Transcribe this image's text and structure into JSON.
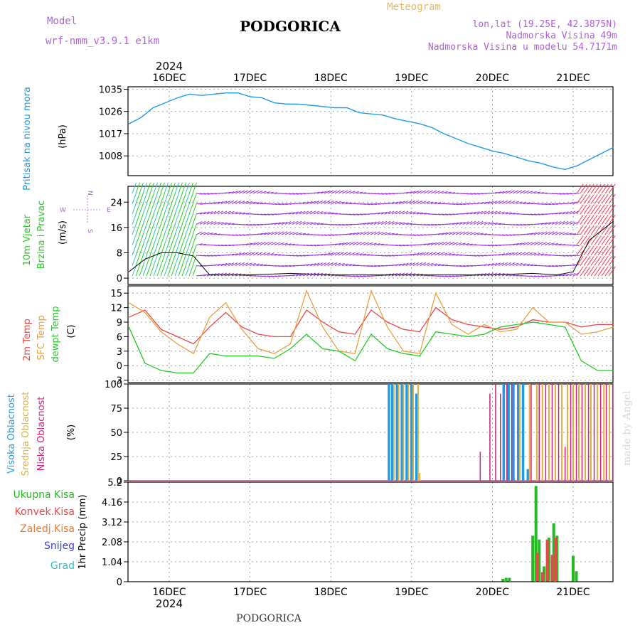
{
  "header": {
    "model_label": "Model",
    "model_name": "wrf-nmm_v3.9.1 e1km",
    "city": "PODGORICA",
    "product": "Meteogram",
    "lonlat": "lon,lat (19.25E, 42.3875N)",
    "elevation": "Nadmorska Visina 49m",
    "model_elevation": "Nadmorska Visina u modelu 54.7171m",
    "footer_city": "PODGORICA",
    "credit": "made by Angel"
  },
  "colors": {
    "pressure": "#1e9be6",
    "wind_green": "#22cc22",
    "wind_purple": "#9a2ee0",
    "wind_red": "#ff3050",
    "temp2m": "#e84848",
    "sfc_temp": "#e8a040",
    "dewpt": "#22cc22",
    "cloud_high": "#1e9be6",
    "cloud_mid": "#e0b040",
    "cloud_low": "#d0207a",
    "precip_total": "#22bb22",
    "precip_conv": "#e84848",
    "precip_frz": "#f07a30",
    "snow": "#3c3ce0",
    "hail": "#30c0c0"
  },
  "time_axis": {
    "year": "2024",
    "days": [
      "16DEC",
      "17DEC",
      "18DEC",
      "19DEC",
      "20DEC",
      "21DEC"
    ]
  },
  "chart_data": [
    {
      "type": "line",
      "panel": "pressure",
      "ylabel": "Pritisak na nivou mora",
      "unit": "(hPa)",
      "yticks": [
        1008,
        1017,
        1026,
        1035
      ],
      "ylim": [
        1000,
        1036
      ],
      "x": [
        -0.5,
        -0.35,
        -0.2,
        -0.05,
        0.1,
        0.25,
        0.4,
        0.55,
        0.7,
        0.85,
        1.0,
        1.15,
        1.3,
        1.45,
        1.6,
        1.75,
        1.9,
        2.05,
        2.2,
        2.35,
        2.5,
        2.65,
        2.8,
        2.95,
        3.1,
        3.25,
        3.4,
        3.55,
        3.7,
        3.85,
        4.0,
        4.15,
        4.3,
        4.45,
        4.6,
        4.75,
        4.9,
        5.05,
        5.2,
        5.35,
        5.5
      ],
      "values": [
        1021,
        1023.5,
        1027.5,
        1029.5,
        1031.5,
        1033,
        1032.5,
        1033,
        1033.5,
        1033.5,
        1032,
        1031.5,
        1029.5,
        1029,
        1029,
        1028.5,
        1028,
        1027.5,
        1027.5,
        1025.5,
        1025,
        1024.5,
        1023,
        1022,
        1021,
        1019.5,
        1017,
        1015,
        1013,
        1011.5,
        1010,
        1009,
        1007.5,
        1006,
        1005,
        1003.5,
        1002.5,
        1004,
        1006.5,
        1009,
        1011.5
      ]
    },
    {
      "type": "line",
      "panel": "wind",
      "ylabel": "10m Vjetar Brzina i Pravac",
      "unit": "(m/s)",
      "direction_key": [
        "N",
        "S",
        "W",
        "E"
      ],
      "yticks": [
        0,
        8,
        16,
        24
      ],
      "ylim": [
        -2,
        29
      ],
      "series": [
        {
          "name": "speed",
          "x": [
            -0.5,
            -0.3,
            -0.1,
            0.1,
            0.3,
            0.5,
            0.7,
            1.0,
            1.5,
            2.0,
            2.5,
            3.0,
            3.5,
            4.0,
            4.5,
            4.8,
            5.0,
            5.2,
            5.5
          ],
          "values": [
            2,
            6,
            8,
            8,
            7,
            1,
            1,
            1,
            1.5,
            1,
            1,
            1,
            1,
            1,
            1.5,
            1,
            2,
            12,
            18
          ]
        }
      ]
    },
    {
      "type": "line",
      "panel": "temperature",
      "ylabel": "2m Temp / SFC Temp / dewpt Temp",
      "unit": "(C)",
      "yticks": [
        -3,
        0,
        3,
        6,
        9,
        12,
        15
      ],
      "ylim": [
        -3.5,
        16.5
      ],
      "x": [
        -0.5,
        -0.3,
        -0.1,
        0.1,
        0.3,
        0.5,
        0.7,
        0.9,
        1.1,
        1.3,
        1.5,
        1.7,
        1.9,
        2.1,
        2.3,
        2.5,
        2.7,
        2.9,
        3.1,
        3.3,
        3.5,
        3.7,
        3.9,
        4.1,
        4.3,
        4.5,
        4.7,
        4.9,
        5.1,
        5.3,
        5.5
      ],
      "series": [
        {
          "name": "2m Temp",
          "values": [
            10,
            11.5,
            7.5,
            6,
            4.5,
            8,
            11,
            8,
            6.5,
            6,
            6,
            11.5,
            9,
            7,
            6.5,
            11.5,
            9,
            7.5,
            7,
            12,
            9.5,
            8.5,
            8,
            7.5,
            8,
            9.5,
            9,
            9,
            8,
            8.5,
            8.5
          ]
        },
        {
          "name": "SFC Temp",
          "values": [
            13,
            11,
            7,
            4.5,
            2.5,
            10,
            13,
            7.5,
            3.5,
            2.5,
            4.5,
            15.5,
            8,
            3,
            2.5,
            15.5,
            8,
            3,
            2.5,
            15,
            8.5,
            6.5,
            8.5,
            7,
            7.5,
            12,
            9,
            9,
            6.5,
            7,
            8
          ]
        },
        {
          "name": "dewpt Temp",
          "values": [
            8,
            0.5,
            -1,
            -1.5,
            -1.5,
            2.5,
            2,
            2,
            2,
            1.5,
            3.5,
            6.5,
            3.5,
            3,
            1,
            6.5,
            3.5,
            2.5,
            2,
            7,
            6.5,
            6,
            6.5,
            8,
            8.5,
            9,
            8.5,
            8,
            1,
            -1,
            -1
          ]
        }
      ]
    },
    {
      "type": "bar",
      "panel": "clouds",
      "ylabel": "Visoka Oblacnost / Srednja Oblacnost / Niska Oblacnost",
      "unit": "(%)",
      "yticks": [
        0,
        25,
        50,
        75,
        100
      ],
      "ylim": [
        0,
        100
      ],
      "series": [
        {
          "name": "Visoka Oblacnost",
          "x": [
            2.72,
            2.76,
            2.82,
            2.88,
            2.94,
            3.0,
            3.06,
            4.14,
            4.2,
            4.26,
            4.32,
            4.38,
            4.44
          ],
          "values": [
            100,
            100,
            100,
            100,
            100,
            100,
            90,
            100,
            100,
            100,
            100,
            100,
            12
          ]
        },
        {
          "name": "Srednja Oblacnost",
          "x": [
            2.78,
            2.84,
            2.9,
            2.96,
            3.02,
            3.08,
            3.1,
            4.34,
            4.46,
            4.55,
            4.62,
            4.7,
            4.78,
            4.86,
            4.93,
            5.0,
            5.07,
            5.15,
            5.22,
            5.3,
            5.38,
            5.45
          ],
          "values": [
            100,
            100,
            100,
            100,
            100,
            100,
            8,
            100,
            100,
            100,
            100,
            100,
            100,
            100,
            100,
            100,
            100,
            100,
            100,
            100,
            100,
            100
          ]
        },
        {
          "name": "Niska Oblacnost",
          "x": [
            3.85,
            3.97,
            4.04,
            4.1,
            4.18,
            4.24,
            4.48,
            4.58,
            4.66,
            4.74,
            4.82,
            4.9,
            4.97,
            5.04,
            5.11,
            5.19,
            5.26,
            5.34,
            5.41,
            5.49
          ],
          "values": [
            30,
            90,
            100,
            90,
            100,
            100,
            100,
            100,
            100,
            100,
            100,
            35,
            100,
            100,
            100,
            100,
            100,
            100,
            100,
            100
          ]
        }
      ]
    },
    {
      "type": "bar",
      "panel": "precipitation",
      "ylabel": "1hr Precip (mm)",
      "legend": [
        "Ukupna Kisa",
        "Konvek.Kisa",
        "Zaledj.Kisa",
        "Snijeg",
        "Grad"
      ],
      "yticks": [
        0,
        1.04,
        2.08,
        3.12,
        4.16,
        5.2
      ],
      "ylim": [
        0,
        5.2
      ],
      "series": [
        {
          "name": "Ukupna Kisa",
          "x": [
            4.13,
            4.17,
            4.21,
            4.5,
            4.54,
            4.58,
            4.64,
            4.7,
            4.76,
            4.8,
            5.0,
            5.04
          ],
          "values": [
            0.15,
            0.2,
            0.2,
            2.4,
            5.0,
            2.2,
            0.8,
            2.3,
            3.05,
            2.4,
            1.35,
            0.55
          ]
        },
        {
          "name": "Konvek.Kisa",
          "x": [
            4.56,
            4.62,
            4.68,
            4.74,
            4.78
          ],
          "values": [
            1.5,
            0.5,
            2.2,
            1.4,
            2.3
          ]
        }
      ]
    }
  ]
}
